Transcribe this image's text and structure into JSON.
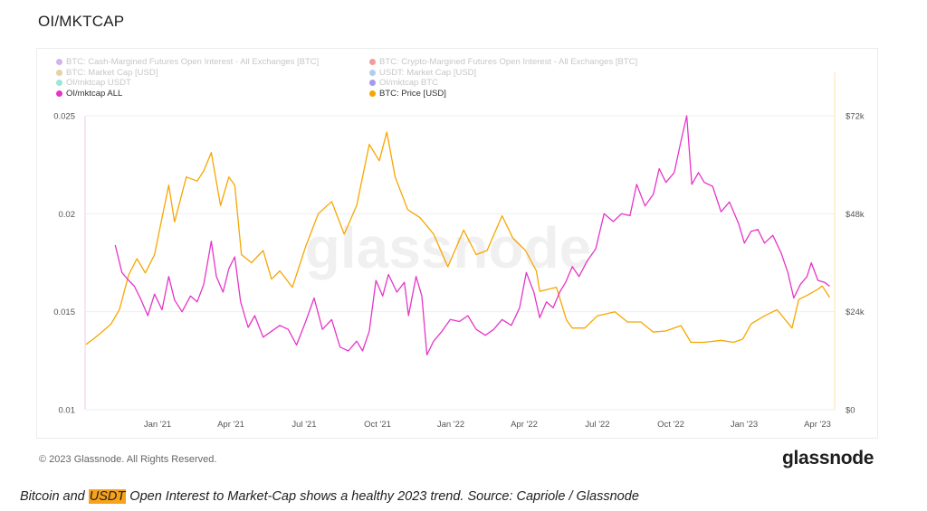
{
  "page": {
    "title": "OI/MKTCAP",
    "copyright": "© 2023 Glassnode. All Rights Reserved.",
    "brand": "glassnode",
    "watermark": "glassnode",
    "caption_before": "Bitcoin and ",
    "caption_highlight": "USDT",
    "caption_after": " Open Interest to Market-Cap shows a healthy 2023 trend. Source: Capriole / Glassnode"
  },
  "legend": [
    {
      "label": "BTC: Cash-Margined Futures Open Interest - All Exchanges [BTC]",
      "color": "#9b59d0",
      "active": false
    },
    {
      "label": "BTC: Crypto-Margined Futures Open Interest - All Exchanges [BTC]",
      "color": "#e02424",
      "active": false
    },
    {
      "label": "BTC: Market Cap [USD]",
      "color": "#c99a3a",
      "active": false
    },
    {
      "label": "USDT: Market Cap [USD]",
      "color": "#5b8fd6",
      "active": false
    },
    {
      "label": "OI/mktcap USDT",
      "color": "#1fc7a8",
      "active": false
    },
    {
      "label": "OI/mktcap BTC",
      "color": "#3b1fd6",
      "active": false
    },
    {
      "label": "OI/mktcap ALL",
      "color": "#e535c8",
      "active": true
    },
    {
      "label": "BTC: Price [USD]",
      "color": "#f7a600",
      "active": true
    }
  ],
  "chart_data": {
    "type": "line",
    "x_range": [
      "2020-11-15",
      "2023-04-30"
    ],
    "x_ticks": [
      "Jan '21",
      "Apr '21",
      "Jul '21",
      "Oct '21",
      "Jan '22",
      "Apr '22",
      "Jul '22",
      "Oct '22",
      "Jan '23",
      "Apr '23"
    ],
    "y_left": {
      "label": "",
      "range": [
        0.01,
        0.025
      ],
      "ticks": [
        "0.01",
        "0.015",
        "0.02",
        "0.025"
      ]
    },
    "y_right": {
      "label": "",
      "range": [
        0,
        72000
      ],
      "ticks": [
        "$0",
        "$24k",
        "$48k",
        "$72k"
      ]
    },
    "grid": true,
    "legend_position": "top-left",
    "series": [
      {
        "name": "OI/mktcap ALL",
        "color": "#e535c8",
        "axis": "left",
        "points": [
          [
            "2020-12-20",
            0.0184
          ],
          [
            "2020-12-28",
            0.017
          ],
          [
            "2021-01-05",
            0.0166
          ],
          [
            "2021-01-12",
            0.0163
          ],
          [
            "2021-01-20",
            0.0156
          ],
          [
            "2021-01-28",
            0.0148
          ],
          [
            "2021-02-05",
            0.0159
          ],
          [
            "2021-02-14",
            0.0151
          ],
          [
            "2021-02-22",
            0.0168
          ],
          [
            "2021-03-01",
            0.0156
          ],
          [
            "2021-03-10",
            0.015
          ],
          [
            "2021-03-20",
            0.0158
          ],
          [
            "2021-03-28",
            0.0155
          ],
          [
            "2021-04-05",
            0.0164
          ],
          [
            "2021-04-14",
            0.0186
          ],
          [
            "2021-04-20",
            0.0168
          ],
          [
            "2021-04-28",
            0.016
          ],
          [
            "2021-05-05",
            0.0172
          ],
          [
            "2021-05-12",
            0.0178
          ],
          [
            "2021-05-19",
            0.0155
          ],
          [
            "2021-05-28",
            0.0142
          ],
          [
            "2021-06-05",
            0.0148
          ],
          [
            "2021-06-15",
            0.0137
          ],
          [
            "2021-06-25",
            0.014
          ],
          [
            "2021-07-05",
            0.0143
          ],
          [
            "2021-07-15",
            0.0141
          ],
          [
            "2021-07-25",
            0.0133
          ],
          [
            "2021-08-05",
            0.0145
          ],
          [
            "2021-08-15",
            0.0157
          ],
          [
            "2021-08-25",
            0.0141
          ],
          [
            "2021-09-05",
            0.0146
          ],
          [
            "2021-09-15",
            0.0132
          ],
          [
            "2021-09-25",
            0.013
          ],
          [
            "2021-10-05",
            0.0135
          ],
          [
            "2021-10-12",
            0.013
          ],
          [
            "2021-10-20",
            0.014
          ],
          [
            "2021-10-28",
            0.0166
          ],
          [
            "2021-11-05",
            0.0158
          ],
          [
            "2021-11-12",
            0.0169
          ],
          [
            "2021-11-22",
            0.016
          ],
          [
            "2021-12-01",
            0.0165
          ],
          [
            "2021-12-06",
            0.0148
          ],
          [
            "2021-12-15",
            0.0168
          ],
          [
            "2021-12-22",
            0.0158
          ],
          [
            "2021-12-28",
            0.0128
          ],
          [
            "2022-01-05",
            0.0135
          ],
          [
            "2022-01-15",
            0.014
          ],
          [
            "2022-01-25",
            0.0146
          ],
          [
            "2022-02-05",
            0.0145
          ],
          [
            "2022-02-15",
            0.0148
          ],
          [
            "2022-02-25",
            0.0141
          ],
          [
            "2022-03-08",
            0.0138
          ],
          [
            "2022-03-18",
            0.0141
          ],
          [
            "2022-03-28",
            0.0146
          ],
          [
            "2022-04-08",
            0.0143
          ],
          [
            "2022-04-18",
            0.0152
          ],
          [
            "2022-04-26",
            0.017
          ],
          [
            "2022-05-05",
            0.016
          ],
          [
            "2022-05-12",
            0.0147
          ],
          [
            "2022-05-20",
            0.0155
          ],
          [
            "2022-05-28",
            0.0152
          ],
          [
            "2022-06-05",
            0.016
          ],
          [
            "2022-06-12",
            0.0165
          ],
          [
            "2022-06-20",
            0.0173
          ],
          [
            "2022-06-28",
            0.0168
          ],
          [
            "2022-07-08",
            0.0176
          ],
          [
            "2022-07-18",
            0.0182
          ],
          [
            "2022-07-28",
            0.02
          ],
          [
            "2022-08-08",
            0.0196
          ],
          [
            "2022-08-18",
            0.02
          ],
          [
            "2022-08-28",
            0.0199
          ],
          [
            "2022-09-05",
            0.0215
          ],
          [
            "2022-09-15",
            0.0204
          ],
          [
            "2022-09-25",
            0.021
          ],
          [
            "2022-10-02",
            0.0223
          ],
          [
            "2022-10-10",
            0.0216
          ],
          [
            "2022-10-20",
            0.0221
          ],
          [
            "2022-10-28",
            0.0237
          ],
          [
            "2022-11-04",
            0.025
          ],
          [
            "2022-11-10",
            0.0215
          ],
          [
            "2022-11-18",
            0.0221
          ],
          [
            "2022-11-25",
            0.0216
          ],
          [
            "2022-12-05",
            0.0214
          ],
          [
            "2022-12-15",
            0.0201
          ],
          [
            "2022-12-25",
            0.0206
          ],
          [
            "2023-01-05",
            0.0195
          ],
          [
            "2023-01-12",
            0.0185
          ],
          [
            "2023-01-20",
            0.0191
          ],
          [
            "2023-01-28",
            0.0192
          ],
          [
            "2023-02-05",
            0.0185
          ],
          [
            "2023-02-15",
            0.0189
          ],
          [
            "2023-02-25",
            0.018
          ],
          [
            "2023-03-05",
            0.017
          ],
          [
            "2023-03-12",
            0.0157
          ],
          [
            "2023-03-20",
            0.0164
          ],
          [
            "2023-03-28",
            0.0168
          ],
          [
            "2023-04-02",
            0.0175
          ],
          [
            "2023-04-10",
            0.0166
          ],
          [
            "2023-04-18",
            0.0165
          ],
          [
            "2023-04-24",
            0.0163
          ]
        ]
      },
      {
        "name": "BTC: Price [USD]",
        "color": "#f7a600",
        "axis": "right",
        "points": [
          [
            "2020-11-15",
            16000
          ],
          [
            "2020-11-25",
            17500
          ],
          [
            "2020-12-05",
            19200
          ],
          [
            "2020-12-15",
            21000
          ],
          [
            "2020-12-25",
            24500
          ],
          [
            "2021-01-05",
            33000
          ],
          [
            "2021-01-15",
            37000
          ],
          [
            "2021-01-25",
            33500
          ],
          [
            "2021-02-05",
            38000
          ],
          [
            "2021-02-15",
            48000
          ],
          [
            "2021-02-22",
            55000
          ],
          [
            "2021-03-01",
            46000
          ],
          [
            "2021-03-15",
            57000
          ],
          [
            "2021-03-28",
            56000
          ],
          [
            "2021-04-05",
            58500
          ],
          [
            "2021-04-14",
            63000
          ],
          [
            "2021-04-25",
            50000
          ],
          [
            "2021-05-05",
            57000
          ],
          [
            "2021-05-12",
            55000
          ],
          [
            "2021-05-20",
            38000
          ],
          [
            "2021-06-01",
            36000
          ],
          [
            "2021-06-15",
            39000
          ],
          [
            "2021-06-25",
            32000
          ],
          [
            "2021-07-05",
            34000
          ],
          [
            "2021-07-20",
            30000
          ],
          [
            "2021-08-05",
            40000
          ],
          [
            "2021-08-20",
            48000
          ],
          [
            "2021-09-05",
            51000
          ],
          [
            "2021-09-20",
            43000
          ],
          [
            "2021-10-05",
            50000
          ],
          [
            "2021-10-20",
            65000
          ],
          [
            "2021-11-01",
            61000
          ],
          [
            "2021-11-10",
            68000
          ],
          [
            "2021-11-20",
            57000
          ],
          [
            "2021-12-05",
            49000
          ],
          [
            "2021-12-20",
            47000
          ],
          [
            "2022-01-05",
            43000
          ],
          [
            "2022-01-22",
            35000
          ],
          [
            "2022-02-10",
            44000
          ],
          [
            "2022-02-25",
            38000
          ],
          [
            "2022-03-10",
            39000
          ],
          [
            "2022-03-28",
            47500
          ],
          [
            "2022-04-10",
            42000
          ],
          [
            "2022-04-25",
            39000
          ],
          [
            "2022-05-08",
            34000
          ],
          [
            "2022-05-12",
            29000
          ],
          [
            "2022-06-01",
            30000
          ],
          [
            "2022-06-13",
            22000
          ],
          [
            "2022-06-20",
            20000
          ],
          [
            "2022-07-05",
            20000
          ],
          [
            "2022-07-20",
            23000
          ],
          [
            "2022-08-10",
            24000
          ],
          [
            "2022-08-25",
            21500
          ],
          [
            "2022-09-10",
            21500
          ],
          [
            "2022-09-25",
            19000
          ],
          [
            "2022-10-10",
            19300
          ],
          [
            "2022-10-28",
            20600
          ],
          [
            "2022-11-09",
            16500
          ],
          [
            "2022-11-25",
            16500
          ],
          [
            "2022-12-15",
            17000
          ],
          [
            "2022-12-30",
            16500
          ],
          [
            "2023-01-10",
            17300
          ],
          [
            "2023-01-20",
            21000
          ],
          [
            "2023-02-05",
            23000
          ],
          [
            "2023-02-20",
            24500
          ],
          [
            "2023-03-10",
            20000
          ],
          [
            "2023-03-18",
            27000
          ],
          [
            "2023-03-28",
            28000
          ],
          [
            "2023-04-10",
            29500
          ],
          [
            "2023-04-15",
            30300
          ],
          [
            "2023-04-24",
            27500
          ]
        ]
      }
    ]
  }
}
